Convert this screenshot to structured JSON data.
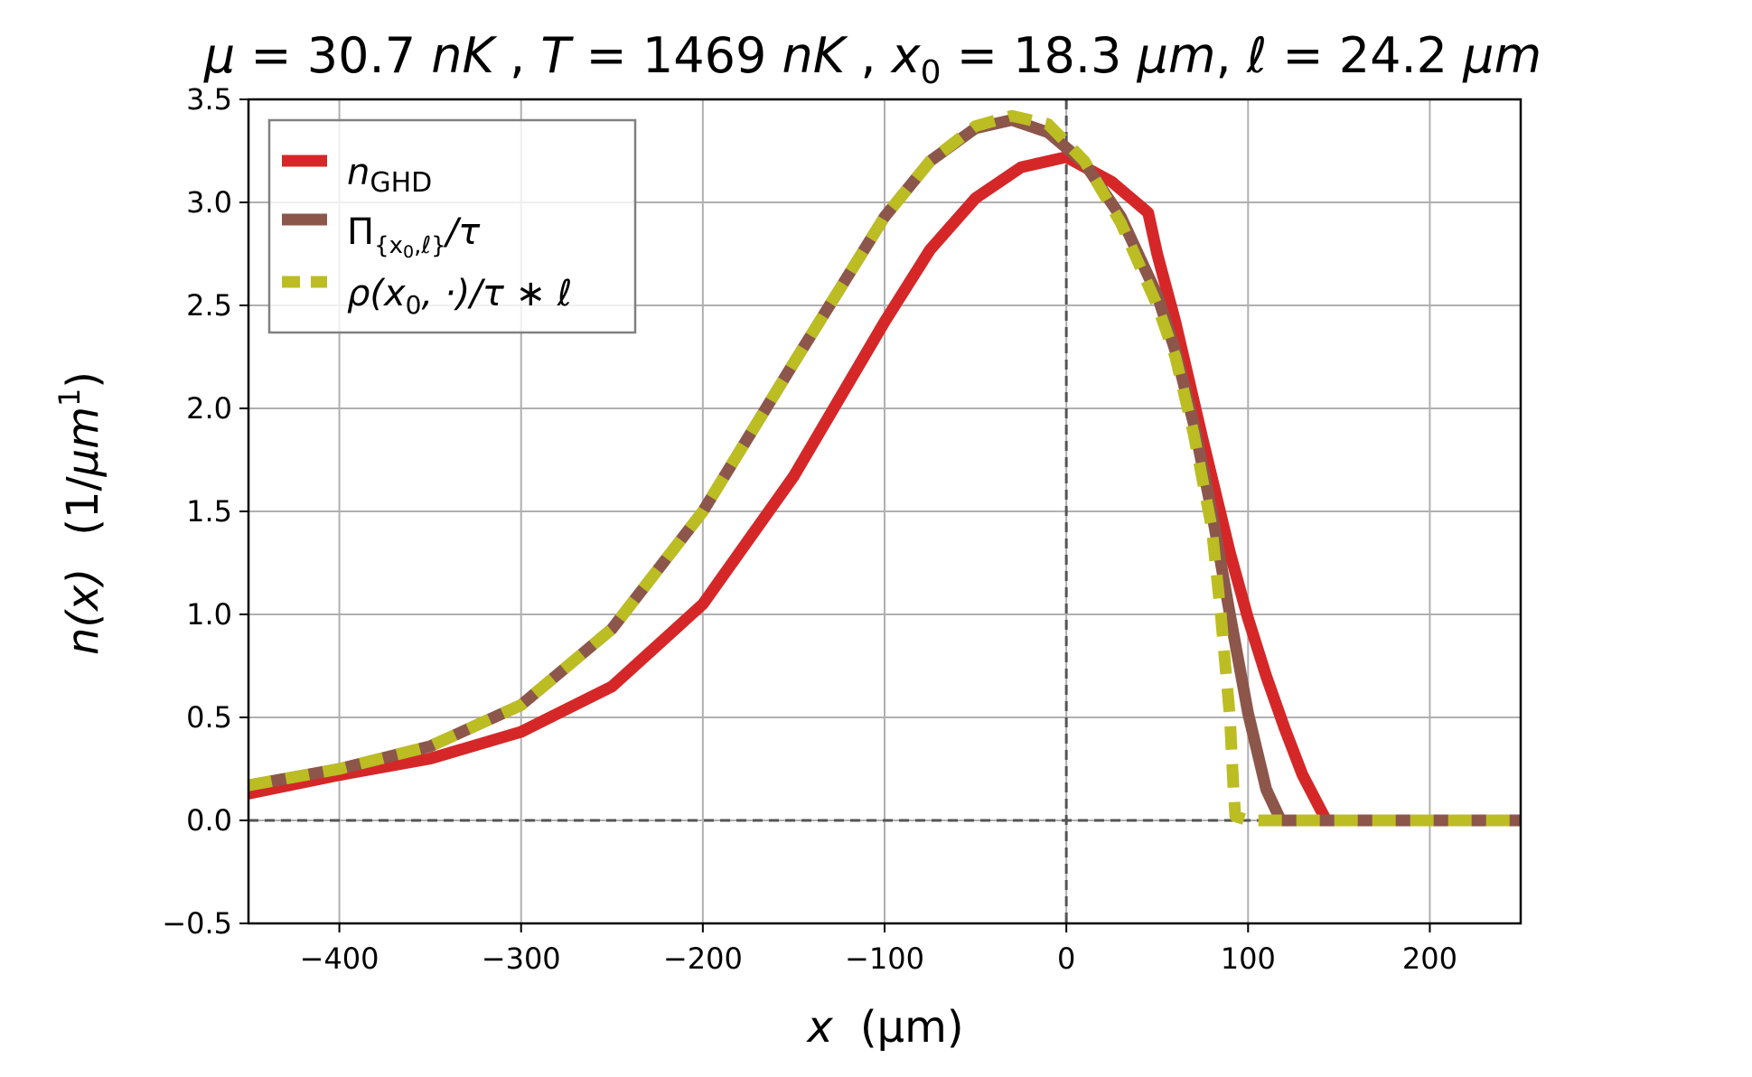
{
  "chart_data": {
    "type": "line",
    "title_parts": {
      "mu_sym": "μ",
      "mu_eq": " =  30.7 ",
      "mu_unit": "nK",
      "sep1": " , ",
      "T_sym": "T",
      "T_eq": " =  1469 ",
      "T_unit": "nK",
      "sep2": " , ",
      "x0_sym": "x",
      "x0_sub": "0",
      "x0_eq": " =  18.3 ",
      "x0_unit": "μm",
      "sep3": ",  ",
      "l_sym": "ℓ",
      "l_eq": " =  24.2 ",
      "l_unit": "μm"
    },
    "xlabel_parts": {
      "var": "x",
      "unit": "(μm)"
    },
    "ylabel_parts": {
      "var": "n(x)",
      "unit_open": "(1/",
      "unit_mu": "μm",
      "unit_exp": "1",
      "unit_close": ")"
    },
    "xlim": [
      -450,
      250
    ],
    "ylim": [
      -0.5,
      3.5
    ],
    "xticks": [
      -400,
      -300,
      -200,
      -100,
      0,
      100,
      200
    ],
    "xtick_labels": [
      "−400",
      "−300",
      "−200",
      "−100",
      "0",
      "100",
      "200"
    ],
    "yticks": [
      -0.5,
      0.0,
      0.5,
      1.0,
      1.5,
      2.0,
      2.5,
      3.0,
      3.5
    ],
    "ytick_labels": [
      "−0.5",
      "0.0",
      "0.5",
      "1.0",
      "1.5",
      "2.0",
      "2.5",
      "3.0",
      "3.5"
    ],
    "grid": true,
    "legend_position": "top-left",
    "reference_lines": {
      "vertical_x": 0,
      "horizontal_y": 0,
      "style": "dashed",
      "color": "#555555"
    },
    "series": [
      {
        "name_parts": {
          "main": "n",
          "sub": "GHD"
        },
        "color": "#d62728",
        "style": "solid",
        "x": [
          -450,
          -400,
          -350,
          -300,
          -250,
          -200,
          -150,
          -100,
          -75,
          -50,
          -25,
          0,
          25,
          45,
          50,
          60,
          75,
          90,
          100,
          110,
          120,
          130,
          143,
          160,
          200,
          250
        ],
        "y": [
          0.13,
          0.22,
          0.3,
          0.43,
          0.65,
          1.05,
          1.67,
          2.42,
          2.77,
          3.02,
          3.17,
          3.22,
          3.1,
          2.95,
          2.75,
          2.42,
          1.85,
          1.3,
          0.98,
          0.7,
          0.45,
          0.22,
          0.0,
          0.0,
          0.0,
          0.0
        ]
      },
      {
        "name_parts": {
          "main": "Π",
          "sub": "{x",
          "subsub": "0",
          "sub_tail": ",ℓ}",
          "tail": "/τ"
        },
        "color": "#8c564b",
        "style": "solid",
        "x": [
          -450,
          -400,
          -350,
          -300,
          -250,
          -200,
          -150,
          -100,
          -75,
          -50,
          -30,
          -10,
          10,
          30,
          50,
          60,
          70,
          80,
          90,
          100,
          110,
          118,
          130,
          200,
          250
        ],
        "y": [
          0.17,
          0.25,
          0.36,
          0.56,
          0.93,
          1.5,
          2.22,
          2.93,
          3.2,
          3.36,
          3.4,
          3.34,
          3.19,
          2.93,
          2.55,
          2.28,
          1.93,
          1.5,
          1.0,
          0.52,
          0.15,
          0.0,
          0.0,
          0.0,
          0.0
        ]
      },
      {
        "name_parts": {
          "main": "ρ(x",
          "sub": "0",
          "tail": ", ·)/τ ∗ ℓ"
        },
        "color": "#bcbd22",
        "style": "dashed",
        "x": [
          -450,
          -400,
          -350,
          -300,
          -250,
          -200,
          -150,
          -100,
          -75,
          -50,
          -30,
          -10,
          10,
          30,
          50,
          60,
          70,
          80,
          85,
          90,
          92,
          93,
          100,
          150,
          200,
          250
        ],
        "y": [
          0.17,
          0.25,
          0.36,
          0.56,
          0.93,
          1.5,
          2.22,
          2.93,
          3.2,
          3.37,
          3.42,
          3.38,
          3.2,
          2.9,
          2.5,
          2.25,
          1.88,
          1.42,
          1.0,
          0.5,
          0.15,
          0.02,
          0.0,
          0.0,
          0.0,
          0.0
        ]
      }
    ]
  }
}
